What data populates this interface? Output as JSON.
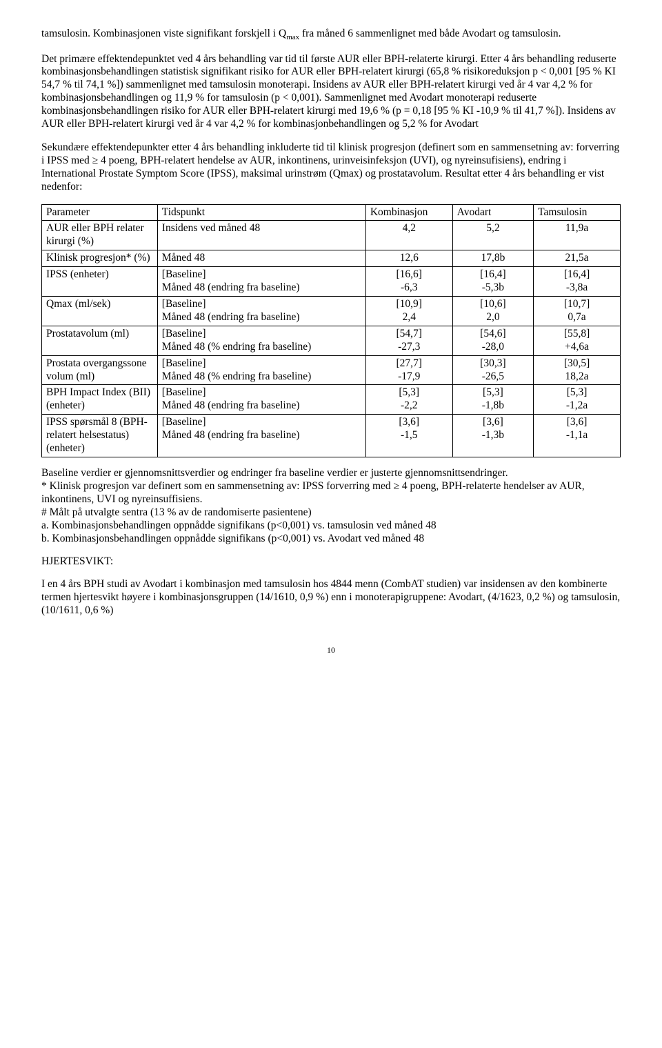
{
  "para1_pre": "tamsulosin. Kombinasjonen viste signifikant forskjell i Q",
  "para1_sub": "max",
  "para1_post": " fra måned 6 sammenlignet med både Avodart og tamsulosin.",
  "para2": "Det primære effektendepunktet ved 4 års behandling var tid til første AUR eller BPH-relaterte kirurgi. Etter 4 års behandling reduserte kombinasjonsbehandlingen statistisk signifikant risiko for AUR eller BPH-relatert kirurgi (65,8 % risikoreduksjon p < 0,001 [95 % KI 54,7 % til 74,1 %]) sammenlignet med tamsulosin monoterapi. Insidens av AUR eller BPH-relatert kirurgi ved år 4 var 4,2 % for kombinasjonsbehandlingen og 11,9 % for tamsulosin (p < 0,001). Sammenlignet med Avodart monoterapi reduserte kombinasjonsbehandlingen risiko for AUR eller BPH-relatert kirurgi med 19,6 % (p = 0,18 [95 % KI -10,9 % til 41,7 %]). Insidens av AUR eller BPH-relatert kirurgi ved år 4 var 4,2 % for kombinasjonbehandlingen og 5,2 % for Avodart",
  "para3": "Sekundære effektendepunkter etter 4 års behandling inkluderte tid til klinisk progresjon (definert som en sammensetning av: forverring i IPSS med ≥ 4 poeng, BPH-relatert hendelse av AUR, inkontinens, urinveisinfeksjon (UVI), og nyreinsufisiens), endring i International Prostate Symptom Score (IPSS), maksimal urinstrøm (Qmax) og prostatavolum. Resultat etter 4 års behandling er vist nedenfor:",
  "table": {
    "headers": [
      "Parameter",
      "Tidspunkt",
      "Kombinasjon",
      "Avodart",
      "Tamsulosin"
    ],
    "rows": [
      {
        "param": "AUR eller BPH relater kirurgi (%)",
        "tidspunkt": "Insidens ved måned 48",
        "komb": "4,2",
        "avodart": "5,2",
        "tams": "11,9a"
      },
      {
        "param": "Klinisk progresjon* (%)",
        "tidspunkt": "Måned 48",
        "komb": "12,6",
        "avodart": "17,8b",
        "tams": "21,5a"
      },
      {
        "param": "IPSS (enheter)",
        "tidspunkt": "[Baseline]\nMåned 48 (endring fra baseline)",
        "komb": "[16,6]\n-6,3",
        "avodart": "[16,4]\n-5,3b",
        "tams": "[16,4]\n-3,8a"
      },
      {
        "param": "Qmax (ml/sek)",
        "tidspunkt": "[Baseline]\nMåned 48 (endring fra baseline)",
        "komb": "[10,9]\n2,4",
        "avodart": "[10,6]\n2,0",
        "tams": "[10,7]\n0,7a"
      },
      {
        "param": "Prostatavolum (ml)",
        "tidspunkt": "[Baseline]\nMåned 48 (% endring fra baseline)",
        "komb": "[54,7]\n-27,3",
        "avodart": "[54,6]\n-28,0",
        "tams": "[55,8]\n+4,6a"
      },
      {
        "param": "Prostata overgangssone volum (ml)",
        "tidspunkt": "[Baseline]\nMåned 48 (% endring fra baseline)",
        "komb": "[27,7]\n-17,9",
        "avodart": "[30,3]\n-26,5",
        "tams": "[30,5]\n18,2a"
      },
      {
        "param": "BPH Impact Index (BII) (enheter)",
        "tidspunkt": "[Baseline]\nMåned 48 (endring fra baseline)",
        "komb": "[5,3]\n-2,2",
        "avodart": "[5,3]\n-1,8b",
        "tams": "[5,3]\n-1,2a"
      },
      {
        "param": "IPSS spørsmål 8 (BPH-relatert helsestatus) (enheter)",
        "tidspunkt": "[Baseline]\nMåned 48 (endring fra baseline)",
        "komb": "[3,6]\n-1,5",
        "avodart": "[3,6]\n-1,3b",
        "tams": "[3,6]\n-1,1a"
      }
    ]
  },
  "footnote1": "Baseline verdier er gjennomsnittsverdier og endringer fra baseline verdier er justerte gjennomsnittsendringer.",
  "footnote2": "* Klinisk progresjon var definert som en sammensetning av: IPSS forverring med ≥ 4 poeng, BPH-relaterte hendelser av AUR, inkontinens, UVI og nyreinsuffisiens.",
  "footnote3": "# Målt på utvalgte sentra (13 % av de randomiserte pasientene)",
  "footnote4": "a. Kombinasjonsbehandlingen oppnådde signifikans (p<0,001) vs. tamsulosin ved måned 48",
  "footnote5": "b. Kombinasjonsbehandlingen oppnådde signifikans (p<0,001) vs. Avodart ved måned 48",
  "section_title": "HJERTESVIKT:",
  "para4": "I en 4 års BPH studi av Avodart i kombinasjon med tamsulosin hos 4844 menn (CombAT studien) var insidensen av den kombinerte termen hjertesvikt høyere i kombinasjonsgruppen (14/1610, 0,9 %) enn i monoterapigruppene: Avodart, (4/1623, 0,2 %) og tamsulosin, (10/1611, 0,6 %)",
  "page_number": "10"
}
